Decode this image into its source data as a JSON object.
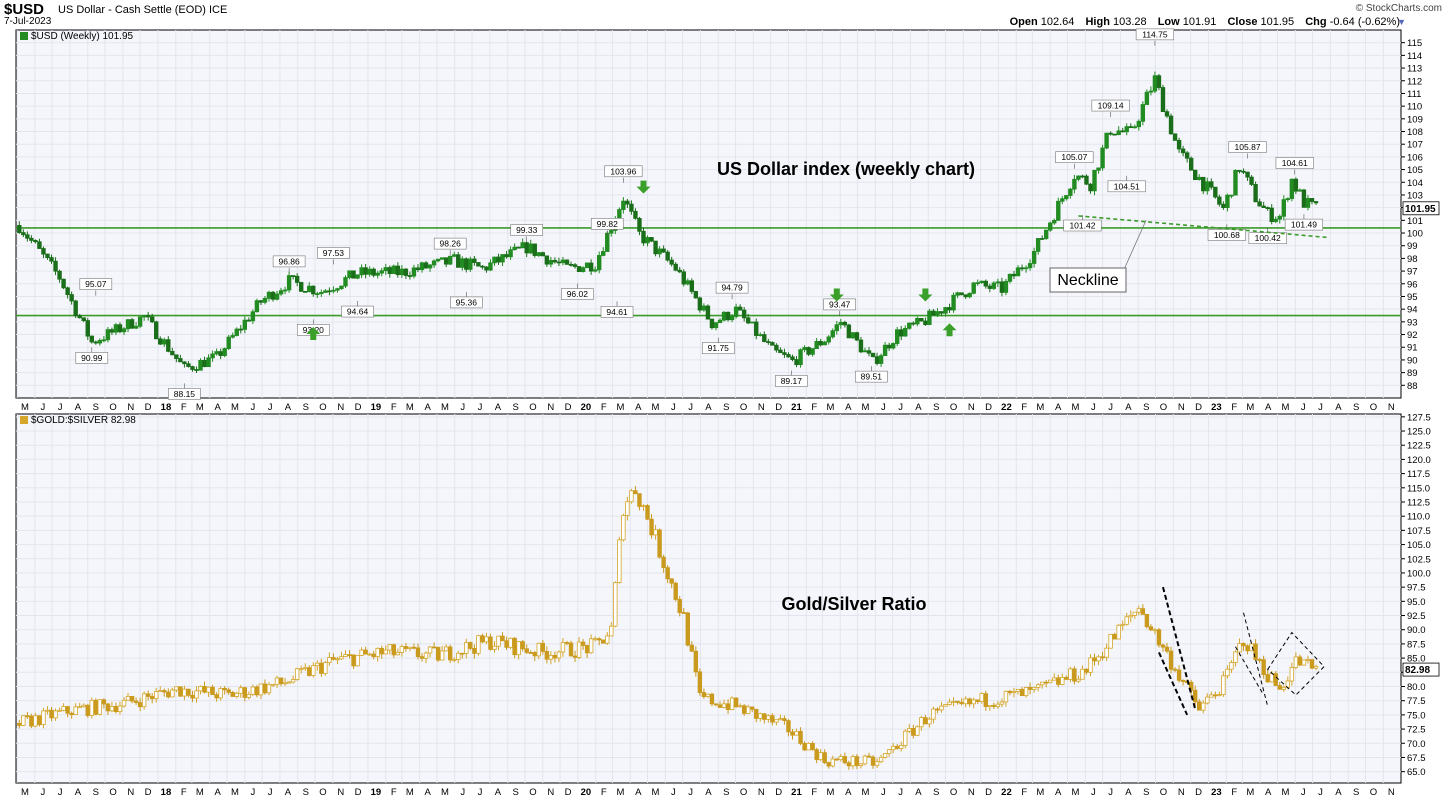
{
  "header": {
    "symbol": "$USD",
    "description": "US Dollar - Cash Settle (EOD) ICE",
    "date": "7-Jul-2023",
    "open_label": "Open",
    "open": "102.64",
    "high_label": "High",
    "high": "103.28",
    "low_label": "Low",
    "low": "101.91",
    "close_label": "Close",
    "close": "101.95",
    "chg_label": "Chg",
    "chg": "-0.64 (-0.62%)",
    "copyright": "© StockCharts.com"
  },
  "chart_data": [
    {
      "type": "candlestick",
      "legend": "$USD (Weekly) 101.95",
      "title": "US Dollar index (weekly chart)",
      "last_value": "101.95",
      "ylim": [
        87,
        116
      ],
      "y_ticks": [
        88,
        89,
        90,
        91,
        92,
        93,
        94,
        95,
        96,
        97,
        98,
        99,
        100,
        101,
        102,
        103,
        104,
        105,
        106,
        107,
        108,
        109,
        110,
        111,
        112,
        113,
        114,
        115
      ],
      "x": [
        "2017-05-05",
        "2017-07-14",
        "2017-09-08",
        "2017-12-08",
        "2018-02-16",
        "2018-04-13",
        "2018-06-29",
        "2018-08-17",
        "2018-10-12",
        "2018-12-14",
        "2019-03-01",
        "2019-05-31",
        "2019-07-19",
        "2019-10-04",
        "2019-12-13",
        "2020-01-31",
        "2020-03-20",
        "2020-04-17",
        "2020-06-19",
        "2020-08-21",
        "2020-10-02",
        "2020-12-04",
        "2021-01-08",
        "2021-03-05",
        "2021-04-02",
        "2021-05-28",
        "2021-07-09",
        "2021-08-20",
        "2021-10-01",
        "2021-11-19",
        "2022-01-07",
        "2022-03-04",
        "2022-05-13",
        "2022-06-10",
        "2022-07-15",
        "2022-08-19",
        "2022-09-30",
        "2022-11-11",
        "2022-12-30",
        "2023-01-27",
        "2023-02-24",
        "2023-03-24",
        "2023-04-14",
        "2023-05-05",
        "2023-05-26",
        "2023-06-16",
        "2023-07-07"
      ],
      "close": [
        100.6,
        96.5,
        91.4,
        93.4,
        89.3,
        90.2,
        94.6,
        96.2,
        95.4,
        96.8,
        96.9,
        97.8,
        97.2,
        98.9,
        97.2,
        97.6,
        102.8,
        99.9,
        97.2,
        92.9,
        93.9,
        90.7,
        89.9,
        91.6,
        93.0,
        89.8,
        92.1,
        92.9,
        94.2,
        95.9,
        95.6,
        98.5,
        104.6,
        103.9,
        108.2,
        107.8,
        112.1,
        106.3,
        103.5,
        101.9,
        105.2,
        102.8,
        101.5,
        101.3,
        104.2,
        102.4,
        101.95
      ],
      "series": [
        {
          "name": "resistance",
          "value": 100.4
        },
        {
          "name": "support",
          "value": 93.5
        }
      ],
      "annotations": {
        "peak_labels": [
          {
            "text": "95.07",
            "x": "2017-09-15",
            "y": 95.07
          },
          {
            "text": "96.86",
            "x": "2018-08-17",
            "y": 96.86
          },
          {
            "text": "97.53",
            "x": "2018-11-02",
            "y": 97.53
          },
          {
            "text": "98.26",
            "x": "2019-05-24",
            "y": 98.26
          },
          {
            "text": "99.33",
            "x": "2019-10-04",
            "y": 99.33
          },
          {
            "text": "99.82",
            "x": "2020-02-21",
            "y": 99.82
          },
          {
            "text": "103.96",
            "x": "2020-03-20",
            "y": 103.96
          },
          {
            "text": "94.79",
            "x": "2020-09-25",
            "y": 94.79
          },
          {
            "text": "93.47",
            "x": "2021-03-31",
            "y": 93.47
          },
          {
            "text": "105.07",
            "x": "2022-05-13",
            "y": 105.07
          },
          {
            "text": "109.14",
            "x": "2022-07-15",
            "y": 109.14
          },
          {
            "text": "114.75",
            "x": "2022-09-30",
            "y": 114.75
          },
          {
            "text": "105.87",
            "x": "2023-03-10",
            "y": 105.87
          },
          {
            "text": "104.61",
            "x": "2023-05-31",
            "y": 104.61
          }
        ],
        "trough_labels": [
          {
            "text": "90.99",
            "x": "2017-09-08",
            "y": 90.99
          },
          {
            "text": "88.15",
            "x": "2018-02-16",
            "y": 88.15
          },
          {
            "text": "93.20",
            "x": "2018-09-28",
            "y": 93.2
          },
          {
            "text": "94.64",
            "x": "2018-12-14",
            "y": 94.64
          },
          {
            "text": "95.36",
            "x": "2019-06-21",
            "y": 95.36
          },
          {
            "text": "96.02",
            "x": "2019-12-31",
            "y": 96.02
          },
          {
            "text": "94.61",
            "x": "2020-03-09",
            "y": 94.61
          },
          {
            "text": "91.75",
            "x": "2020-09-01",
            "y": 91.75
          },
          {
            "text": "89.17",
            "x": "2021-01-06",
            "y": 89.17
          },
          {
            "text": "89.51",
            "x": "2021-05-25",
            "y": 89.51
          },
          {
            "text": "104.51",
            "x": "2022-08-12",
            "y": 104.51
          },
          {
            "text": "101.42",
            "x": "2022-05-27",
            "y": 101.42
          },
          {
            "text": "100.68",
            "x": "2023-02-02",
            "y": 100.68
          },
          {
            "text": "100.42",
            "x": "2023-04-14",
            "y": 100.42
          },
          {
            "text": "101.49",
            "x": "2023-06-16",
            "y": 101.49
          }
        ],
        "callout": "Neckline",
        "down_arrows": [
          {
            "x": "2020-04-24",
            "y": 103.5
          },
          {
            "x": "2021-03-26",
            "y": 95.0
          },
          {
            "x": "2021-08-27",
            "y": 95.0
          }
        ],
        "up_arrows": [
          {
            "x": "2018-09-28",
            "y": 92.2
          },
          {
            "x": "2021-10-08",
            "y": 92.5
          }
        ],
        "neckline": [
          {
            "x": "2022-05-20",
            "y": 101.35
          },
          {
            "x": "2023-07-28",
            "y": 99.65
          }
        ]
      },
      "x_axis_labels": [
        "M",
        "J",
        "J",
        "A",
        "S",
        "O",
        "N",
        "D",
        "18",
        "F",
        "M",
        "A",
        "M",
        "J",
        "J",
        "A",
        "S",
        "O",
        "N",
        "D",
        "19",
        "F",
        "M",
        "A",
        "M",
        "J",
        "J",
        "A",
        "S",
        "O",
        "N",
        "D",
        "20",
        "F",
        "M",
        "A",
        "M",
        "J",
        "J",
        "A",
        "S",
        "O",
        "N",
        "D",
        "21",
        "F",
        "M",
        "A",
        "M",
        "J",
        "J",
        "A",
        "S",
        "O",
        "N",
        "D",
        "22",
        "F",
        "M",
        "A",
        "M",
        "J",
        "J",
        "A",
        "S",
        "O",
        "N",
        "D",
        "23",
        "F",
        "M",
        "A",
        "M",
        "J",
        "J",
        "A",
        "S",
        "O",
        "N"
      ]
    },
    {
      "type": "candlestick",
      "legend": "$GOLD:$SILVER 82.98",
      "title": "Gold/Silver Ratio",
      "last_value": "82.98",
      "ylim": [
        63,
        128
      ],
      "y_ticks": [
        65.0,
        67.5,
        70.0,
        72.5,
        75.0,
        77.5,
        80.0,
        82.5,
        85.0,
        87.5,
        90.0,
        92.5,
        95.0,
        97.5,
        100.0,
        102.5,
        105.0,
        107.5,
        110.0,
        112.5,
        115.0,
        117.5,
        120.0,
        122.5,
        125.0,
        127.5
      ],
      "x": [
        "2017-05-05",
        "2017-08-04",
        "2017-11-03",
        "2018-02-02",
        "2018-05-04",
        "2018-08-03",
        "2018-11-02",
        "2019-02-01",
        "2019-05-03",
        "2019-08-02",
        "2019-11-01",
        "2020-01-31",
        "2020-02-28",
        "2020-03-20",
        "2020-04-10",
        "2020-05-08",
        "2020-06-05",
        "2020-07-03",
        "2020-07-31",
        "2020-10-02",
        "2021-01-01",
        "2021-03-05",
        "2021-06-04",
        "2021-09-03",
        "2021-12-03",
        "2022-03-04",
        "2022-06-03",
        "2022-09-02",
        "2022-10-07",
        "2022-11-11",
        "2022-12-16",
        "2023-01-27",
        "2023-03-03",
        "2023-03-31",
        "2023-05-05",
        "2023-06-02",
        "2023-07-07"
      ],
      "close": [
        73.5,
        75.8,
        77.0,
        79.5,
        78.5,
        80.5,
        84.5,
        86.0,
        85.5,
        88.0,
        86.0,
        87.0,
        90.0,
        112.0,
        115.0,
        108.0,
        100.0,
        92.0,
        78.0,
        76.5,
        72.5,
        67.0,
        66.5,
        75.0,
        77.5,
        79.0,
        83.0,
        94.0,
        88.0,
        82.0,
        76.0,
        80.5,
        88.5,
        84.0,
        79.5,
        84.5,
        82.98
      ],
      "annotations": {
        "channel_lines": [
          [
            {
              "x": "2022-10-14",
              "y": 97.5
            },
            {
              "x": "2022-12-09",
              "y": 76.0
            }
          ],
          [
            {
              "x": "2022-10-07",
              "y": 86.0
            },
            {
              "x": "2022-11-25",
              "y": 75.0
            }
          ],
          [
            {
              "x": "2023-03-03",
              "y": 93.0
            },
            {
              "x": "2023-04-14",
              "y": 76.5
            }
          ],
          [
            {
              "x": "2023-02-17",
              "y": 87.0
            },
            {
              "x": "2023-04-07",
              "y": 78.5
            }
          ]
        ],
        "wedge": [
          {
            "x": "2023-04-14",
            "y": 83.0
          },
          {
            "x": "2023-05-26",
            "y": 89.5
          },
          {
            "x": "2023-07-21",
            "y": 83.5
          },
          {
            "x": "2023-06-02",
            "y": 78.5
          }
        ]
      },
      "x_axis_labels": [
        "M",
        "J",
        "J",
        "A",
        "S",
        "O",
        "N",
        "D",
        "18",
        "F",
        "M",
        "A",
        "M",
        "J",
        "J",
        "A",
        "S",
        "O",
        "N",
        "D",
        "19",
        "F",
        "M",
        "A",
        "M",
        "J",
        "J",
        "A",
        "S",
        "O",
        "N",
        "D",
        "20",
        "F",
        "M",
        "A",
        "M",
        "J",
        "J",
        "A",
        "S",
        "O",
        "N",
        "D",
        "21",
        "F",
        "M",
        "A",
        "M",
        "J",
        "J",
        "A",
        "S",
        "O",
        "N",
        "D",
        "22",
        "F",
        "M",
        "A",
        "M",
        "J",
        "J",
        "A",
        "S",
        "O",
        "N",
        "D",
        "23",
        "F",
        "M",
        "A",
        "M",
        "J",
        "J",
        "A",
        "S",
        "O",
        "N"
      ]
    }
  ]
}
